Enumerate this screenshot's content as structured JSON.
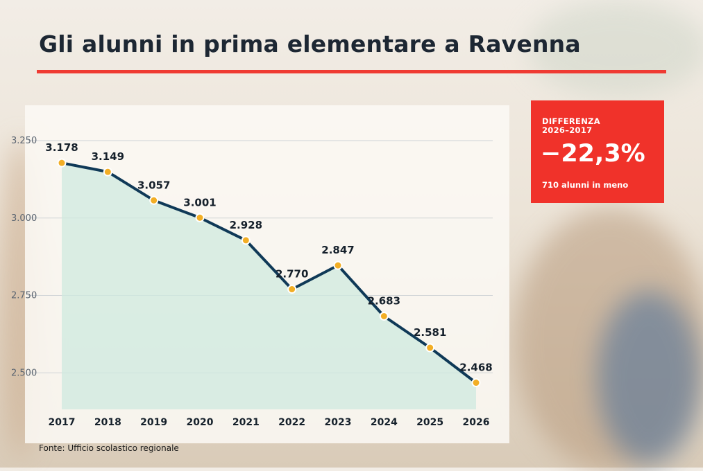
{
  "title": "Gli alunni in prima elementare a Ravenna",
  "colors": {
    "accent_red": "#ef3b33",
    "line": "#0f3957",
    "marker": "#f2ae25",
    "area": "#cfe9df"
  },
  "callout": {
    "label_line1": "DIFFERENZA",
    "label_line2": "2026–2017",
    "value": "−22,3%",
    "subtext": "710 alunni in meno"
  },
  "source": "Fonte: Ufficio scolastico regionale",
  "chart_data": {
    "type": "line",
    "title": "Gli alunni in prima elementare a Ravenna",
    "xlabel": "",
    "ylabel": "",
    "categories": [
      "2017",
      "2018",
      "2019",
      "2020",
      "2021",
      "2022",
      "2023",
      "2024",
      "2025",
      "2026"
    ],
    "values": [
      3178,
      3149,
      3057,
      3001,
      2928,
      2770,
      2847,
      2683,
      2581,
      2468
    ],
    "data_labels": [
      "3.178",
      "3.149",
      "3.057",
      "3.001",
      "2.928",
      "2.770",
      "2.847",
      "2.683",
      "2.581",
      "2.468"
    ],
    "yticks": [
      2500,
      2750,
      3000,
      3250
    ],
    "ytick_labels": [
      "2.500",
      "2.750",
      "3.000",
      "3.250"
    ],
    "ylim": [
      2382,
      3250
    ],
    "grid": true,
    "area_fill": true
  }
}
